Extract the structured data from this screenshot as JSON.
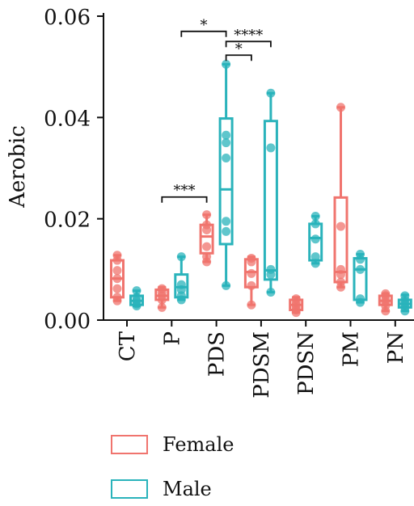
{
  "chart_data": {
    "type": "box",
    "ylabel": "Aerobic",
    "ylim": [
      0,
      0.06
    ],
    "yticks": [
      "0.00",
      "0.02",
      "0.04",
      "0.06"
    ],
    "categories": [
      "CT",
      "P",
      "PDS",
      "PDSM",
      "PDSN",
      "PM",
      "PN"
    ],
    "legend_position": "bottom",
    "series": [
      {
        "name": "Female",
        "color": "#f0746e",
        "boxes": [
          {
            "min": 0.0038,
            "q1": 0.0045,
            "median": 0.0082,
            "q3": 0.0118,
            "max": 0.0128,
            "points": [
              0.0038,
              0.0045,
              0.0062,
              0.0082,
              0.0098,
              0.0118,
              0.0128
            ]
          },
          {
            "min": 0.0025,
            "q1": 0.004,
            "median": 0.0048,
            "q3": 0.006,
            "max": 0.0065,
            "points": [
              0.0025,
              0.004,
              0.0048,
              0.0055,
              0.0062
            ]
          },
          {
            "min": 0.0115,
            "q1": 0.0132,
            "median": 0.0165,
            "q3": 0.0188,
            "max": 0.0208,
            "points": [
              0.0115,
              0.0125,
              0.0145,
              0.0178,
              0.0188,
              0.0208
            ]
          },
          {
            "min": 0.003,
            "q1": 0.0065,
            "median": 0.0095,
            "q3": 0.012,
            "max": 0.0125,
            "points": [
              0.003,
              0.0068,
              0.0092,
              0.0115,
              0.0122
            ]
          },
          {
            "min": 0.0015,
            "q1": 0.002,
            "median": 0.003,
            "q3": 0.004,
            "max": 0.0045,
            "points": [
              0.0015,
              0.002,
              0.0025,
              0.003,
              0.0035,
              0.0042
            ]
          },
          {
            "min": 0.0065,
            "q1": 0.0075,
            "median": 0.0095,
            "q3": 0.0242,
            "max": 0.042,
            "points": [
              0.0065,
              0.0075,
              0.009,
              0.01,
              0.0185,
              0.042
            ]
          },
          {
            "min": 0.0018,
            "q1": 0.003,
            "median": 0.0038,
            "q3": 0.0048,
            "max": 0.0052,
            "points": [
              0.0018,
              0.0028,
              0.0035,
              0.004,
              0.0048,
              0.0052
            ]
          }
        ]
      },
      {
        "name": "Male",
        "color": "#2ab3bb",
        "boxes": [
          {
            "min": 0.0028,
            "q1": 0.003,
            "median": 0.0038,
            "q3": 0.0048,
            "max": 0.0058,
            "points": [
              0.0028,
              0.0032,
              0.0038,
              0.0045,
              0.0058
            ]
          },
          {
            "min": 0.004,
            "q1": 0.0045,
            "median": 0.0065,
            "q3": 0.009,
            "max": 0.0125,
            "points": [
              0.004,
              0.0048,
              0.006,
              0.007,
              0.0125
            ]
          },
          {
            "min": 0.0068,
            "q1": 0.015,
            "median": 0.0258,
            "q3": 0.0398,
            "max": 0.0505,
            "points": [
              0.0068,
              0.0175,
              0.0195,
              0.032,
              0.035,
              0.0365,
              0.0505
            ]
          },
          {
            "min": 0.0055,
            "q1": 0.008,
            "median": 0.0098,
            "q3": 0.0393,
            "max": 0.0448,
            "points": [
              0.0055,
              0.009,
              0.01,
              0.034,
              0.0448
            ]
          },
          {
            "min": 0.0112,
            "q1": 0.0118,
            "median": 0.0162,
            "q3": 0.019,
            "max": 0.0205,
            "points": [
              0.0112,
              0.0125,
              0.016,
              0.019,
              0.0205
            ]
          },
          {
            "min": 0.0035,
            "q1": 0.004,
            "median": 0.01,
            "q3": 0.0122,
            "max": 0.013,
            "points": [
              0.0035,
              0.0042,
              0.01,
              0.012,
              0.013
            ]
          },
          {
            "min": 0.0018,
            "q1": 0.0025,
            "median": 0.0032,
            "q3": 0.004,
            "max": 0.005,
            "points": [
              0.0018,
              0.0025,
              0.003,
              0.0035,
              0.004,
              0.0048
            ]
          }
        ]
      }
    ],
    "significance": [
      {
        "label": "*",
        "from": {
          "category": "P",
          "series": "Male"
        },
        "to": {
          "category": "PDS",
          "series": "Male"
        },
        "y": 0.057
      },
      {
        "label": "****",
        "from": {
          "category": "PDS",
          "series": "Male"
        },
        "to": {
          "category": "PDSM",
          "series": "Male"
        },
        "y": 0.055
      },
      {
        "label": "*",
        "from": {
          "category": "PDS",
          "series": "Male"
        },
        "to": {
          "category": "PDSM",
          "series": "Female"
        },
        "y": 0.0523
      },
      {
        "label": "***",
        "from": {
          "category": "P",
          "series": "Female"
        },
        "to": {
          "category": "PDS",
          "series": "Female"
        },
        "y": 0.0243
      }
    ]
  }
}
